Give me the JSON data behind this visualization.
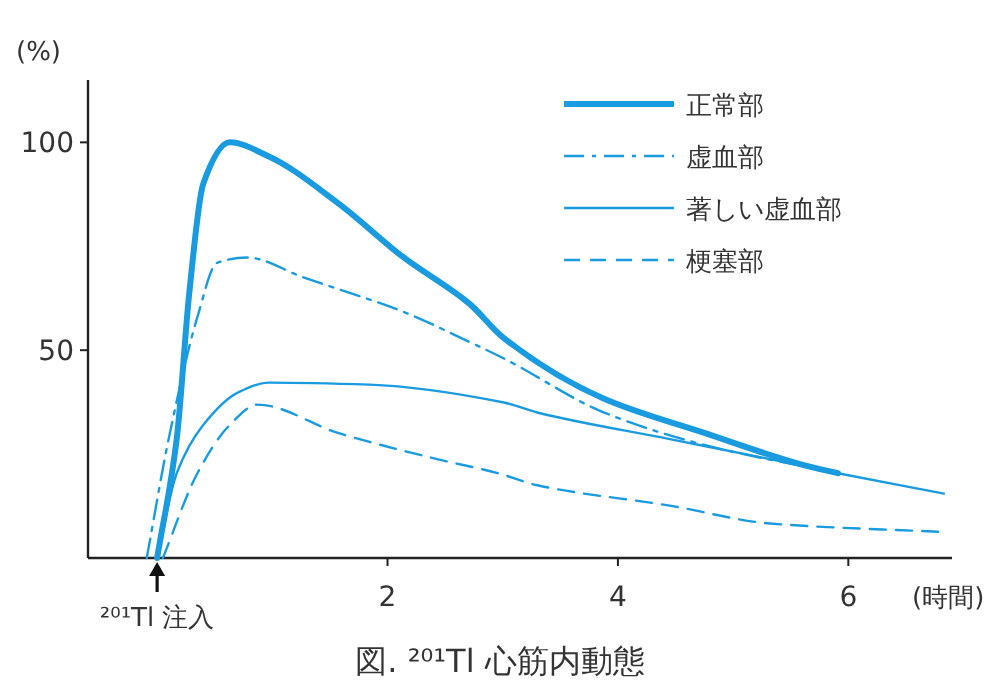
{
  "chart_data": {
    "type": "line",
    "title": "図. ²⁰¹Tl 心筋内動態",
    "xlabel": "(時間)",
    "ylabel": "(%)",
    "xlim": [
      -0.6,
      6.9
    ],
    "ylim": [
      0,
      115
    ],
    "xticks": [
      2,
      4,
      6
    ],
    "yticks": [
      50,
      100
    ],
    "grid": false,
    "legend": "top right",
    "marker": "none",
    "annotations": [
      {
        "text": "²⁰¹Tl 注入",
        "x": 0,
        "y": 0
      }
    ],
    "series": [
      {
        "name": "正常部",
        "color": "#1a9be0",
        "line_style": "solid",
        "x": [
          0,
          0.17,
          0.28,
          0.4,
          0.63,
          0.97,
          1.57,
          2.14,
          2.71,
          3.01,
          3.88,
          4.75,
          5.62,
          5.91
        ],
        "values": [
          0,
          28.6,
          64,
          90,
          100,
          96.6,
          85.4,
          72.3,
          61.2,
          52.9,
          38.3,
          30.1,
          22.3,
          20.4
        ]
      },
      {
        "name": "虚血部",
        "color": "#1a9be0",
        "line_style": "dashdot",
        "x": [
          -0.09,
          0.1,
          0.35,
          0.52,
          0.78,
          1.27,
          2.14,
          2.71,
          3.01,
          3.88,
          4.75,
          5.91
        ],
        "values": [
          0,
          28.6,
          58,
          71,
          72.3,
          67.5,
          59.2,
          52,
          48,
          35,
          27.2,
          20.4
        ]
      },
      {
        "name": "著しい虚血部",
        "color": "#1a9be0",
        "line_style": "solid",
        "x": [
          0,
          0.17,
          0.4,
          0.7,
          0.97,
          1.84,
          3.01,
          3.3,
          4.45,
          5.32,
          5.91,
          6.83
        ],
        "values": [
          0,
          20.4,
          32,
          39.8,
          42.2,
          41.7,
          37.4,
          35,
          28.6,
          23.8,
          20.4,
          15.5
        ]
      },
      {
        "name": "梗塞部",
        "color": "#1a9be0",
        "line_style": "dashed",
        "x": [
          0.05,
          0.35,
          0.63,
          0.87,
          1.57,
          2.43,
          2.96,
          3.3,
          4.45,
          5.32,
          6.78
        ],
        "values": [
          0,
          20.4,
          32,
          36.9,
          30.1,
          23.8,
          20.4,
          17.5,
          12.6,
          8.3,
          6.3
        ]
      }
    ]
  }
}
